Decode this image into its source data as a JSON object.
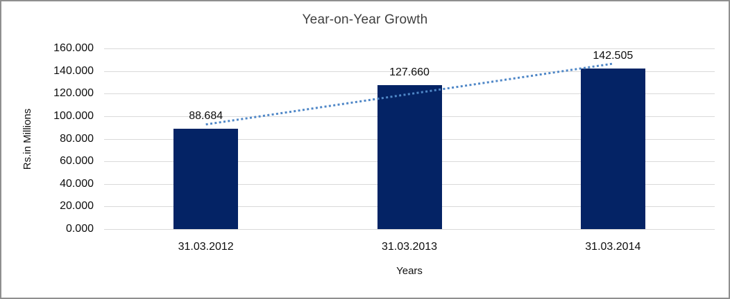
{
  "chart_data": {
    "type": "bar",
    "title": "Year-on-Year Growth",
    "xlabel": "Years",
    "ylabel": "Rs.in Millions",
    "categories": [
      "31.03.2012",
      "31.03.2013",
      "31.03.2014"
    ],
    "values": [
      88.684,
      127.66,
      142.505
    ],
    "data_labels": [
      "88.684",
      "127.660",
      "142.505"
    ],
    "y_ticks": [
      "0.000",
      "20.000",
      "40.000",
      "60.000",
      "80.000",
      "100.000",
      "120.000",
      "140.000",
      "160.000"
    ],
    "ylim": [
      0,
      160
    ],
    "grid": true,
    "legend": "none",
    "colors": {
      "bar": "#042365",
      "trendline": "#4f87c7",
      "gridline": "#d9d9d9",
      "frame_border": "#8f8f8f",
      "title_text": "#3f3f3f",
      "label_text": "#0d0d0d"
    },
    "trendline": {
      "type": "linear",
      "style": "dotted"
    }
  }
}
